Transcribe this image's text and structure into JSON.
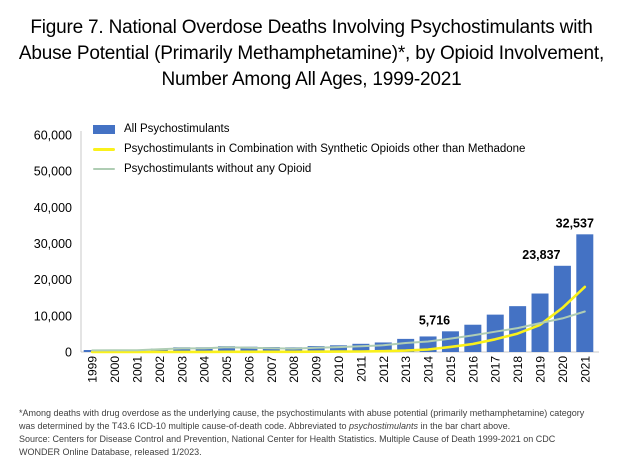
{
  "title": "Figure 7. National Overdose Deaths Involving Psychostimulants with Abuse Potential (Primarily Methamphetamine)*, by Opioid Involvement, Number Among All Ages, 1999-2021",
  "legend": {
    "items": [
      {
        "label": "All Psychostimulants",
        "color": "#4472C4",
        "marker": "bar"
      },
      {
        "label": "Psychostimulants in Combination with Synthetic Opioids other than Methadone",
        "color": "#FAF11B",
        "marker": "line"
      },
      {
        "label": "Psychostimulants without any Opioid",
        "color": "#AFCDB4",
        "marker": "thinline"
      }
    ]
  },
  "chart_data": {
    "type": "bar",
    "title": "",
    "xlabel": "",
    "ylabel": "",
    "categories": [
      "1999",
      "2000",
      "2001",
      "2002",
      "2003",
      "2004",
      "2005",
      "2006",
      "2007",
      "2008",
      "2009",
      "2010",
      "2011",
      "2012",
      "2013",
      "2014",
      "2015",
      "2016",
      "2017",
      "2018",
      "2019",
      "2020",
      "2021"
    ],
    "series": [
      {
        "name": "All Psychostimulants",
        "type": "bar",
        "color": "#4472C4",
        "values": [
          547,
          578,
          563,
          941,
          1302,
          1305,
          1608,
          1462,
          1378,
          1302,
          1632,
          1854,
          2266,
          2635,
          3627,
          4298,
          5716,
          7542,
          10333,
          12676,
          16167,
          23837,
          32537
        ]
      },
      {
        "name": "Psychostimulants in Combination with Synthetic Opioids other than Methadone",
        "type": "line",
        "color": "#FAF11B",
        "stroke_width": 2.6,
        "values": [
          20,
          20,
          20,
          30,
          40,
          40,
          50,
          50,
          50,
          60,
          80,
          100,
          140,
          220,
          400,
          700,
          1400,
          2200,
          3500,
          5100,
          7500,
          12200,
          18000
        ]
      },
      {
        "name": "Psychostimulants without any Opioid",
        "type": "line",
        "color": "#AFCDB4",
        "stroke_width": 2,
        "values": [
          450,
          480,
          460,
          750,
          1000,
          1000,
          1300,
          1150,
          1050,
          950,
          1200,
          1350,
          1600,
          1850,
          2500,
          2900,
          3700,
          4600,
          5600,
          6600,
          8000,
          9300,
          11200
        ]
      }
    ],
    "annotations": [
      {
        "category": "2015",
        "text": "5,716",
        "dx": -16
      },
      {
        "category": "2020",
        "text": "23,837",
        "dx": -21
      },
      {
        "category": "2021",
        "text": "32,537",
        "dx": -10
      }
    ],
    "ylim": [
      0,
      60000
    ],
    "ytick_step": 10000,
    "ytick_labels": [
      "0",
      "10,000",
      "20,000",
      "30,000",
      "40,000",
      "50,000",
      "60,000"
    ],
    "grid": false,
    "legend_position": "top-left",
    "axis_color": "#C9C9C9"
  },
  "footnote": {
    "p1_before": "*Among deaths with drug overdose as the underlying cause, the psychostimulants with abuse potential (primarily methamphetamine) category was determined by the T43.6 ICD-10 multiple cause-of-death code. Abbreviated to ",
    "p1_italic": "psychostimulants",
    "p1_after": " in the bar chart above.",
    "p2": "Source: Centers for Disease Control and Prevention, National Center for Health Statistics. Multiple Cause of Death 1999-2021 on CDC WONDER Online Database, released 1/2023."
  }
}
